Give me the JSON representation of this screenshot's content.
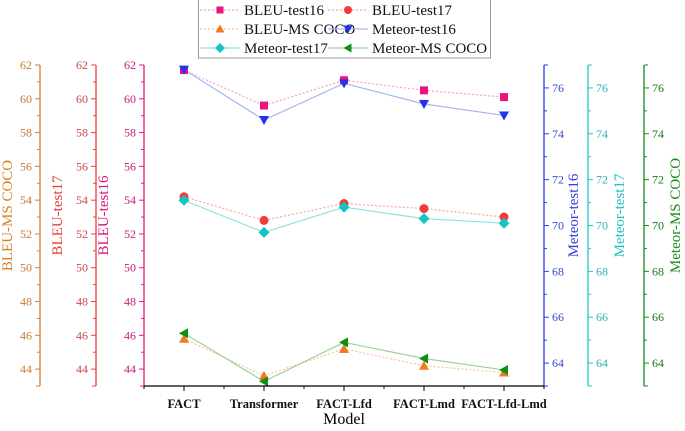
{
  "chart_data": {
    "type": "line",
    "title": "",
    "xlabel": "Model",
    "categories": [
      "FACT",
      "Transformer",
      "FACT-Lfd",
      "FACT-Lmd",
      "FACT-Lfd-Lmd"
    ],
    "axes": [
      {
        "id": "bleu_mscoco",
        "side": "left",
        "label": "BLEU-MS COCO",
        "range": [
          43,
          62
        ],
        "ticks": [
          44,
          46,
          48,
          50,
          52,
          54,
          56,
          58,
          60,
          62
        ],
        "color": "#e07a2a"
      },
      {
        "id": "bleu_test17",
        "side": "left",
        "label": "BLEU-test17",
        "range": [
          43,
          62
        ],
        "ticks": [
          44,
          46,
          48,
          50,
          52,
          54,
          56,
          58,
          60,
          62
        ],
        "color": "#e8403e"
      },
      {
        "id": "bleu_test16",
        "side": "left",
        "label": "BLEU-test16",
        "range": [
          43,
          62
        ],
        "ticks": [
          44,
          46,
          48,
          50,
          52,
          54,
          56,
          58,
          60,
          62
        ],
        "color": "#e0198a"
      },
      {
        "id": "meteor_test16",
        "side": "right",
        "label": "Meteor-test16",
        "range": [
          63,
          77
        ],
        "ticks": [
          64,
          66,
          68,
          70,
          72,
          74,
          76
        ],
        "color": "#2a3fe8"
      },
      {
        "id": "meteor_test17",
        "side": "right",
        "label": "Meteor-test17",
        "range": [
          63,
          77
        ],
        "ticks": [
          64,
          66,
          68,
          70,
          72,
          74,
          76
        ],
        "color": "#20c8c8"
      },
      {
        "id": "meteor_mscoco",
        "side": "right",
        "label": "Meteor-MS COCO",
        "range": [
          63,
          77
        ],
        "ticks": [
          64,
          66,
          68,
          70,
          72,
          74,
          76
        ],
        "color": "#1a8a1a"
      }
    ],
    "series": [
      {
        "name": "BLEU-test16",
        "axis": "bleu_test16",
        "values": [
          61.7,
          59.6,
          61.1,
          60.5,
          60.1
        ],
        "marker": "square",
        "color": "#e8157f",
        "line_color": "#f5a0cc",
        "dash": true
      },
      {
        "name": "BLEU-test17",
        "axis": "bleu_test17",
        "values": [
          54.2,
          52.8,
          53.8,
          53.5,
          53.0
        ],
        "marker": "circle",
        "color": "#f03c3c",
        "line_color": "#f6aaaa",
        "dash": true
      },
      {
        "name": "BLEU-MS COCO",
        "axis": "bleu_mscoco",
        "values": [
          45.8,
          43.6,
          45.2,
          44.2,
          43.8
        ],
        "marker": "triangle-up",
        "color": "#f07a22",
        "line_color": "#f8c49a",
        "dash": true
      },
      {
        "name": "Meteor-test16",
        "axis": "meteor_test16",
        "values": [
          76.8,
          74.6,
          76.2,
          75.3,
          74.8
        ],
        "marker": "triangle-down",
        "color": "#2233ee",
        "line_color": "#aab4f5",
        "dash": false
      },
      {
        "name": "Meteor-test17",
        "axis": "meteor_test17",
        "values": [
          71.1,
          69.7,
          70.8,
          70.3,
          70.1
        ],
        "marker": "diamond",
        "color": "#12c4c4",
        "line_color": "#90e4e4",
        "dash": false
      },
      {
        "name": "Meteor-MS COCO",
        "axis": "meteor_mscoco",
        "values": [
          65.3,
          63.2,
          64.9,
          64.2,
          63.7
        ],
        "marker": "triangle-left",
        "color": "#0f8f0f",
        "line_color": "#9ad49a",
        "dash": false
      }
    ],
    "legend": {
      "position": "top-center",
      "columns": 2
    },
    "grid": false
  }
}
